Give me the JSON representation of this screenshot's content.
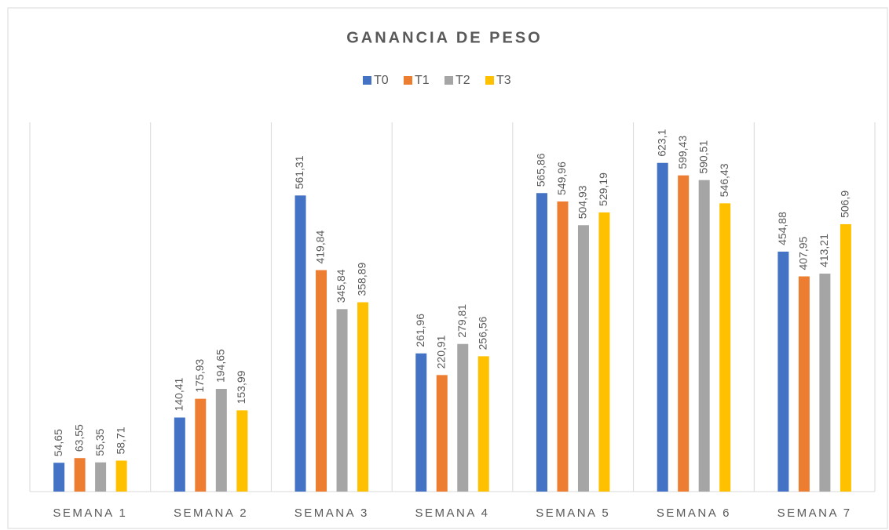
{
  "chart_data": {
    "type": "bar",
    "title": "GANANCIA DE PESO",
    "categories": [
      "SEMANA 1",
      "SEMANA 2",
      "SEMANA 3",
      "SEMANA 4",
      "SEMANA 5",
      "SEMANA 6",
      "SEMANA 7"
    ],
    "series": [
      {
        "name": "T0",
        "color": "#4472c4",
        "values": [
          54.65,
          140.41,
          561.31,
          261.96,
          565.86,
          623.1,
          454.88
        ],
        "value_labels": [
          "54,65",
          "140,41",
          "561,31",
          "261,96",
          "565,86",
          "623,1",
          "454,88"
        ]
      },
      {
        "name": "T1",
        "color": "#ed7d31",
        "values": [
          63.55,
          175.93,
          419.84,
          220.91,
          549.96,
          599.43,
          407.95
        ],
        "value_labels": [
          "63,55",
          "175,93",
          "419,84",
          "220,91",
          "549,96",
          "599,43",
          "407,95"
        ]
      },
      {
        "name": "T2",
        "color": "#a5a5a5",
        "values": [
          55.35,
          194.65,
          345.84,
          279.81,
          504.93,
          590.51,
          413.21
        ],
        "value_labels": [
          "55,35",
          "194,65",
          "345,84",
          "279,81",
          "504,93",
          "590,51",
          "413,21"
        ]
      },
      {
        "name": "T3",
        "color": "#ffc000",
        "values": [
          58.71,
          153.99,
          358.89,
          256.56,
          529.19,
          546.43,
          506.9
        ],
        "value_labels": [
          "58,71",
          "153,99",
          "358,89",
          "256,56",
          "529,19",
          "546,43",
          "506,9"
        ]
      }
    ],
    "ylim": [
      0,
      700
    ],
    "legend": "top"
  }
}
